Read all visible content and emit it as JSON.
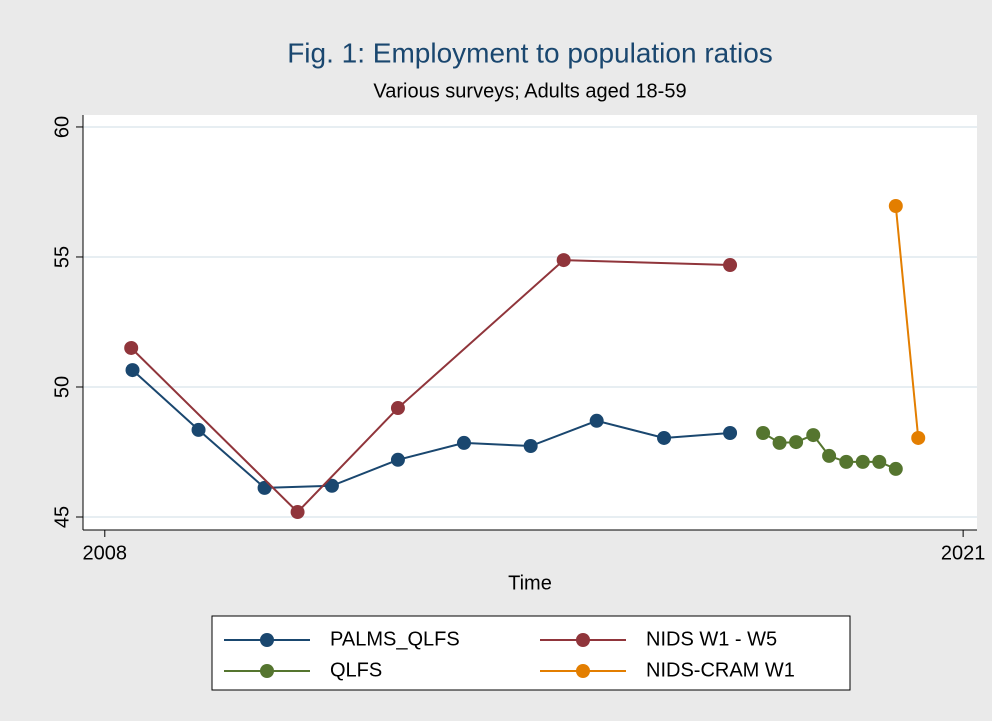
{
  "chart_data": {
    "type": "line",
    "title": "Fig. 1: Employment to population ratios",
    "subtitle": "Various surveys; Adults aged 18-59",
    "x_label": "Time",
    "xlim": [
      2007.67,
      2021.21
    ],
    "xticks": [
      2008,
      2021
    ],
    "ylim": [
      44.5,
      60.46
    ],
    "yticks": [
      45,
      50,
      55,
      60
    ],
    "grid": true,
    "series": [
      {
        "name": "PALMS_QLFS",
        "color": "#1a476f",
        "x": [
          2008.42,
          2009.42,
          2010.42,
          2011.44,
          2012.44,
          2013.44,
          2014.45,
          2015.45,
          2016.47,
          2017.47
        ],
        "values": [
          50.65,
          48.35,
          46.12,
          46.2,
          47.2,
          47.85,
          47.73,
          48.7,
          48.04,
          48.23
        ]
      },
      {
        "name": "NIDS W1 - W5",
        "color": "#90353b",
        "x": [
          2008.4,
          2010.92,
          2012.44,
          2014.95,
          2017.47
        ],
        "values": [
          51.5,
          45.19,
          49.19,
          54.88,
          54.69
        ]
      },
      {
        "name": "QLFS",
        "color": "#55752f",
        "x": [
          2017.97,
          2018.22,
          2018.47,
          2018.73,
          2018.97,
          2019.23,
          2019.48,
          2019.73,
          2019.98
        ],
        "values": [
          48.23,
          47.85,
          47.88,
          48.15,
          47.35,
          47.12,
          47.12,
          47.12,
          46.85
        ]
      },
      {
        "name": "NIDS-CRAM W1",
        "color": "#e37e00",
        "x": [
          2019.98,
          2020.32
        ],
        "values": [
          56.96,
          48.04
        ]
      }
    ]
  }
}
